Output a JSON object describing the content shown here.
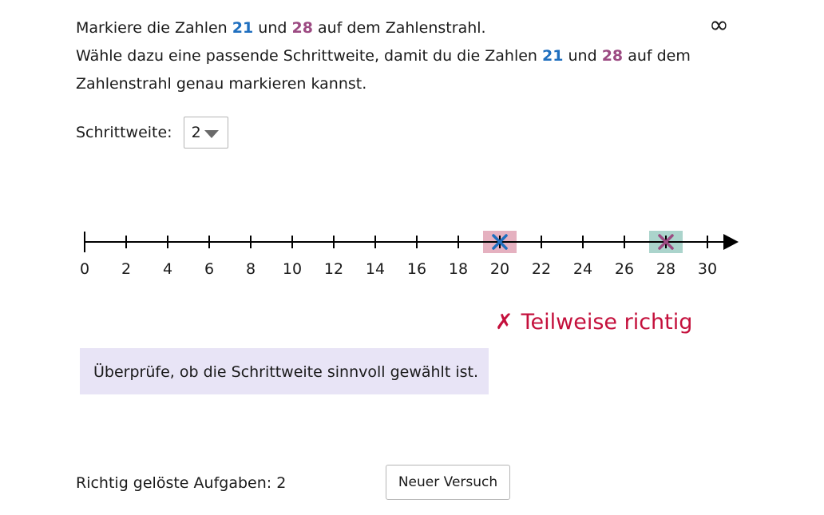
{
  "task": {
    "line1_a": "Markiere die Zahlen",
    "num1": "21",
    "and": "und",
    "num2": "28",
    "line1_b": "auf dem Zahlenstrahl.",
    "line2_a": "Wähle dazu eine passende Schrittweite, damit du die Zahlen",
    "line2_b": "auf dem",
    "line3": "Zahlenstrahl genau markieren kannst."
  },
  "infinity_symbol": "∞",
  "step": {
    "label": "Schrittweite:",
    "value": "2"
  },
  "number_line": {
    "min": 0,
    "max": 30,
    "step": 2,
    "ticks": [
      "0",
      "2",
      "4",
      "6",
      "8",
      "10",
      "12",
      "14",
      "16",
      "18",
      "20",
      "22",
      "24",
      "26",
      "28",
      "30"
    ],
    "marks": [
      {
        "value": 20,
        "marker_color": "#1f6fbf",
        "highlight_color": "#e0a3b5"
      },
      {
        "value": 28,
        "marker_color": "#9c4a82",
        "highlight_color": "#9ccdc3"
      }
    ]
  },
  "feedback": {
    "icon": "✗",
    "text": "Teilweise richtig"
  },
  "hint": "Überprüfe, ob die Schrittweite sinnvoll gewählt ist.",
  "score": "Richtig gelöste Aufgaben: 2",
  "retry_button": "Neuer Versuch"
}
